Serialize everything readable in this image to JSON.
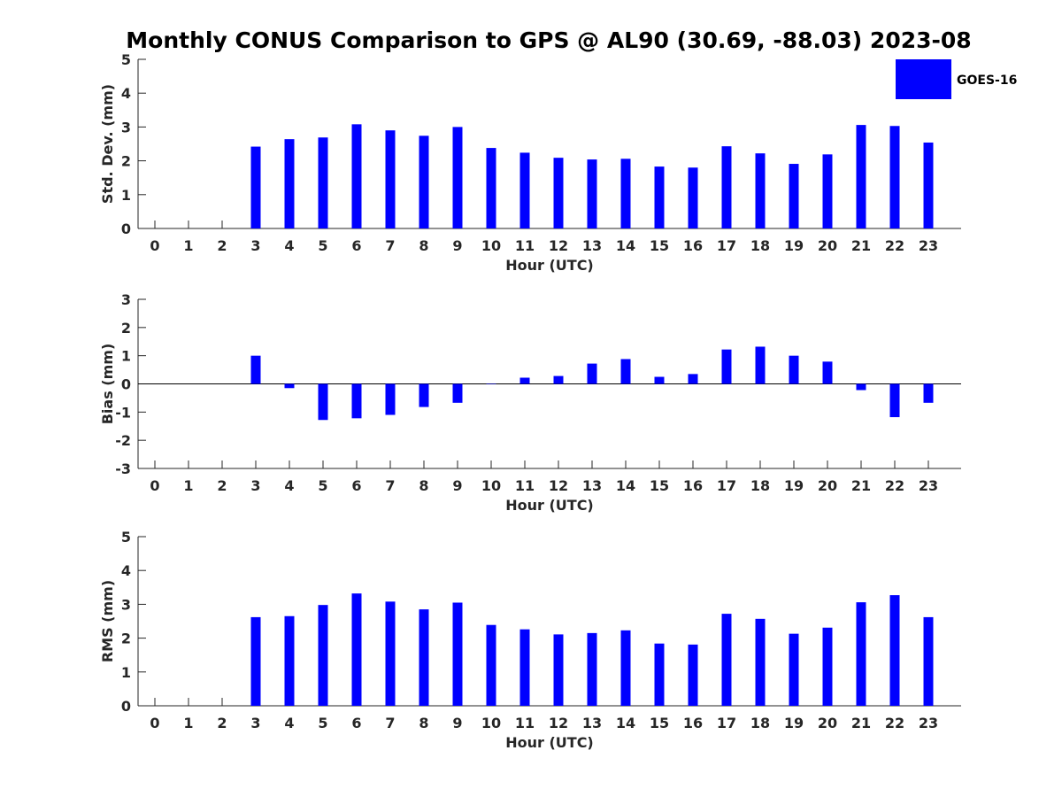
{
  "title": "Monthly CONUS Comparison to GPS @ AL90 (30.69, -88.03) 2023-08",
  "legend": {
    "label": "GOES-16",
    "color": "#0000ff"
  },
  "chart_data": [
    {
      "type": "bar",
      "categories": [
        "0",
        "1",
        "2",
        "3",
        "4",
        "5",
        "6",
        "7",
        "8",
        "9",
        "10",
        "11",
        "12",
        "13",
        "14",
        "15",
        "16",
        "17",
        "18",
        "19",
        "20",
        "21",
        "22",
        "23"
      ],
      "xlabel": "Hour (UTC)",
      "ylabel": "Std. Dev. (mm)",
      "ylim": [
        0,
        5
      ],
      "yticks": [
        0,
        1,
        2,
        3,
        4,
        5
      ],
      "series": [
        {
          "name": "GOES-16",
          "color": "#0000ff",
          "values": [
            null,
            null,
            null,
            2.42,
            2.64,
            2.69,
            3.08,
            2.9,
            2.74,
            3.0,
            2.38,
            2.24,
            2.09,
            2.04,
            2.06,
            1.83,
            1.8,
            2.43,
            2.22,
            1.91,
            2.19,
            3.06,
            3.03,
            2.54
          ]
        }
      ]
    },
    {
      "type": "bar",
      "categories": [
        "0",
        "1",
        "2",
        "3",
        "4",
        "5",
        "6",
        "7",
        "8",
        "9",
        "10",
        "11",
        "12",
        "13",
        "14",
        "15",
        "16",
        "17",
        "18",
        "19",
        "20",
        "21",
        "22",
        "23"
      ],
      "xlabel": "Hour (UTC)",
      "ylabel": "Bias (mm)",
      "ylim": [
        -3,
        3
      ],
      "yticks": [
        -3,
        -2,
        -1,
        0,
        1,
        2,
        3
      ],
      "series": [
        {
          "name": "GOES-16",
          "color": "#0000ff",
          "values": [
            null,
            null,
            null,
            1.0,
            -0.15,
            -1.28,
            -1.22,
            -1.1,
            -0.82,
            -0.67,
            0.0,
            0.22,
            0.28,
            0.72,
            0.88,
            0.25,
            0.35,
            1.22,
            1.32,
            1.0,
            0.79,
            -0.22,
            -1.18,
            -0.67
          ]
        }
      ]
    },
    {
      "type": "bar",
      "categories": [
        "0",
        "1",
        "2",
        "3",
        "4",
        "5",
        "6",
        "7",
        "8",
        "9",
        "10",
        "11",
        "12",
        "13",
        "14",
        "15",
        "16",
        "17",
        "18",
        "19",
        "20",
        "21",
        "22",
        "23"
      ],
      "xlabel": "Hour (UTC)",
      "ylabel": "RMS (mm)",
      "ylim": [
        0,
        5
      ],
      "yticks": [
        0,
        1,
        2,
        3,
        4,
        5
      ],
      "series": [
        {
          "name": "GOES-16",
          "color": "#0000ff",
          "values": [
            null,
            null,
            null,
            2.62,
            2.65,
            2.98,
            3.32,
            3.08,
            2.85,
            3.05,
            2.39,
            2.26,
            2.11,
            2.15,
            2.23,
            1.84,
            1.81,
            2.72,
            2.57,
            2.13,
            2.31,
            3.06,
            3.27,
            2.62
          ]
        }
      ]
    }
  ]
}
